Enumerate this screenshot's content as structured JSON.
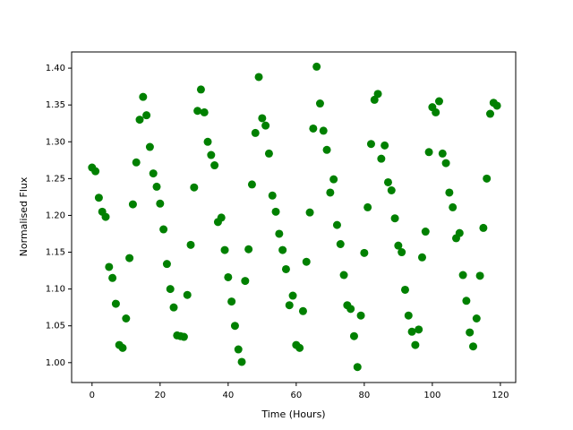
{
  "chart_data": {
    "type": "scatter",
    "xlabel": "Time (Hours)",
    "ylabel": "Normalised Flux",
    "color": "#008000",
    "x": [
      0,
      1,
      2,
      3,
      4,
      5,
      6,
      7,
      8,
      9,
      10,
      11,
      12,
      13,
      14,
      15,
      16,
      17,
      18,
      19,
      20,
      21,
      22,
      23,
      24,
      25,
      26,
      27,
      28,
      29,
      30,
      31,
      32,
      33,
      34,
      35,
      36,
      37,
      38,
      39,
      40,
      41,
      42,
      43,
      44,
      45,
      46,
      47,
      48,
      49,
      50,
      51,
      52,
      53,
      54,
      55,
      56,
      57,
      58,
      59,
      60,
      61,
      62,
      63,
      64,
      65,
      66,
      67,
      68,
      69,
      70,
      71,
      72,
      73,
      74,
      75,
      76,
      77,
      78,
      79,
      80,
      81,
      82,
      83,
      84,
      85,
      86,
      87,
      88,
      89,
      90,
      91,
      92,
      93,
      94,
      95,
      96,
      97,
      98,
      99,
      100,
      101,
      102,
      103,
      104,
      105,
      106,
      107,
      108,
      109,
      110,
      111,
      112,
      113,
      114,
      115,
      116,
      117,
      118,
      119
    ],
    "values": [
      1.265,
      1.26,
      1.224,
      1.205,
      1.198,
      1.13,
      1.115,
      1.08,
      1.024,
      1.02,
      1.06,
      1.142,
      1.215,
      1.272,
      1.33,
      1.361,
      1.336,
      1.293,
      1.257,
      1.239,
      1.216,
      1.181,
      1.134,
      1.1,
      1.075,
      1.037,
      1.036,
      1.035,
      1.092,
      1.16,
      1.238,
      1.342,
      1.371,
      1.34,
      1.3,
      1.282,
      1.268,
      1.191,
      1.197,
      1.153,
      1.116,
      1.083,
      1.05,
      1.018,
      1.001,
      1.111,
      1.154,
      1.242,
      1.312,
      1.388,
      1.332,
      1.322,
      1.284,
      1.227,
      1.205,
      1.175,
      1.153,
      1.127,
      1.078,
      1.091,
      1.024,
      1.02,
      1.07,
      1.137,
      1.204,
      1.318,
      1.402,
      1.352,
      1.315,
      1.289,
      1.231,
      1.249,
      1.187,
      1.161,
      1.119,
      1.078,
      1.073,
      1.036,
      0.994,
      1.064,
      1.149,
      1.211,
      1.297,
      1.357,
      1.365,
      1.277,
      1.295,
      1.245,
      1.234,
      1.196,
      1.159,
      1.15,
      1.099,
      1.064,
      1.042,
      1.024,
      1.045,
      1.143,
      1.178,
      1.286,
      1.347,
      1.34,
      1.355,
      1.284,
      1.271,
      1.231,
      1.211,
      1.169,
      1.176,
      1.119,
      1.084,
      1.041,
      1.022,
      1.06,
      1.118,
      1.183,
      1.25,
      1.338,
      1.353,
      1.349
    ],
    "xlim": [
      -6,
      124.5
    ],
    "ylim": [
      0.973,
      1.422
    ],
    "xticks": [
      0,
      20,
      40,
      60,
      80,
      100,
      120
    ],
    "yticks": [
      {
        "value": 1.0,
        "label": "1.00"
      },
      1.05,
      {
        "value": 1.1,
        "label": "1.10"
      },
      1.15,
      {
        "value": 1.2,
        "label": "1.20"
      },
      1.25,
      {
        "value": 1.3,
        "label": "1.30"
      },
      1.35,
      {
        "value": 1.4,
        "label": "1.40"
      }
    ]
  }
}
